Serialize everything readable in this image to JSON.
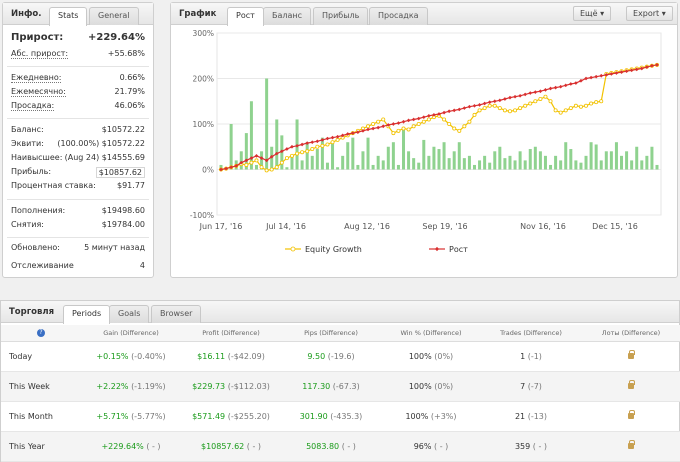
{
  "info": {
    "title": "Инфо.",
    "tabs": [
      "Stats",
      "General"
    ],
    "gain": {
      "label": "Прирост:",
      "value": "+229.64%"
    },
    "abs_gain": {
      "label": "Абс. прирост:",
      "value": "+55.68%"
    },
    "daily": {
      "label": "Ежедневно:",
      "value": "0.66%"
    },
    "monthly": {
      "label": "Ежемесячно:",
      "value": "21.79%"
    },
    "drawdown": {
      "label": "Просадка:",
      "value": "46.06%"
    },
    "balance": {
      "label": "Баланс:",
      "value": "$10572.22"
    },
    "equity": {
      "label": "Эквити:",
      "value": "(100.00%) $10572.22"
    },
    "highest": {
      "label": "Наивысшее:",
      "value": "(Aug 24) $14555.69"
    },
    "profit": {
      "label": "Прибыль:",
      "value": "$10857.62"
    },
    "interest": {
      "label": "Процентная ставка:",
      "value": "$91.77"
    },
    "deposits": {
      "label": "Пополнения:",
      "value": "$19498.60"
    },
    "withdrawals": {
      "label": "Снятия:",
      "value": "$19784.00"
    },
    "updated": {
      "label": "Обновлено:",
      "value": "5 минут назад"
    },
    "tracking": {
      "label": "Отслеживание",
      "value": "4"
    }
  },
  "graph": {
    "title": "График",
    "tabs": [
      "Рост",
      "Баланс",
      "Прибыль",
      "Просадка"
    ],
    "more_label": "Ещё",
    "export_label": "Export",
    "legend_equity": "Equity Growth",
    "legend_growth": "Рост"
  },
  "chart_data": {
    "type": "line",
    "ylim": [
      -100,
      300
    ],
    "yticks": [
      "300%",
      "200%",
      "100%",
      "0%",
      "-100%"
    ],
    "xticks": [
      "Jun 17, '16",
      "Jul 14, '16",
      "Aug 12, '16",
      "Sep 19, '16",
      "Nov 16, '16",
      "Dec 15, '16"
    ],
    "series": [
      {
        "name": "Equity Growth",
        "color": "#f2c200",
        "values": [
          0,
          2,
          5,
          8,
          12,
          10,
          15,
          20,
          5,
          -2,
          0,
          5,
          15,
          25,
          30,
          35,
          38,
          40,
          45,
          50,
          52,
          55,
          60,
          65,
          70,
          75,
          80,
          85,
          90,
          95,
          100,
          105,
          110,
          95,
          80,
          85,
          90,
          88,
          95,
          100,
          105,
          110,
          115,
          118,
          110,
          100,
          90,
          85,
          95,
          105,
          120,
          130,
          135,
          140,
          140,
          135,
          130,
          128,
          130,
          135,
          140,
          145,
          150,
          155,
          160,
          150,
          130,
          125,
          130,
          135,
          140,
          138,
          140,
          145,
          148,
          150,
          210,
          212,
          214,
          216,
          218,
          220,
          222,
          224,
          226,
          228,
          230
        ]
      },
      {
        "name": "Рост",
        "color": "#d93030",
        "values": [
          0,
          2,
          5,
          8,
          15,
          20,
          25,
          30,
          25,
          20,
          28,
          35,
          40,
          45,
          50,
          52,
          55,
          58,
          60,
          62,
          65,
          68,
          70,
          72,
          75,
          78,
          80,
          82,
          85,
          88,
          90,
          92,
          95,
          98,
          100,
          102,
          105,
          108,
          110,
          112,
          115,
          118,
          120,
          122,
          125,
          128,
          130,
          132,
          135,
          138,
          140,
          142,
          145,
          148,
          150,
          152,
          155,
          158,
          160,
          162,
          165,
          168,
          170,
          172,
          175,
          178,
          180,
          182,
          185,
          188,
          190,
          195,
          200,
          202,
          204,
          206,
          208,
          210,
          212,
          214,
          216,
          218,
          220,
          222,
          225,
          228,
          230
        ]
      }
    ],
    "bars": [
      10,
      5,
      100,
      20,
      40,
      80,
      150,
      10,
      40,
      200,
      50,
      110,
      75,
      5,
      30,
      110,
      20,
      60,
      30,
      45,
      70,
      15,
      60,
      5,
      30,
      60,
      70,
      10,
      40,
      70,
      10,
      30,
      20,
      50,
      60,
      10,
      90,
      40,
      25,
      15,
      65,
      30,
      50,
      45,
      60,
      25,
      40,
      60,
      25,
      30,
      10,
      20,
      30,
      15,
      40,
      50,
      25,
      30,
      20,
      40,
      20,
      45,
      50,
      40,
      30,
      10,
      30,
      20,
      60,
      45,
      20,
      15,
      30,
      60,
      55,
      20,
      40,
      40,
      60,
      30,
      40,
      20,
      50,
      20,
      30,
      50,
      10
    ]
  },
  "trading": {
    "title": "Торговля",
    "tabs": [
      "Periods",
      "Goals",
      "Browser"
    ],
    "columns": [
      "Gain (Difference)",
      "Profit (Difference)",
      "Pips (Difference)",
      "Win % (Difference)",
      "Trades (Difference)",
      "Лоты (Difference)"
    ],
    "rows": [
      {
        "label": "Today",
        "gain": "+0.15%",
        "gain_diff": "(-0.40%)",
        "profit": "$16.11",
        "profit_diff": "(-$42.09)",
        "pips": "9.50",
        "pips_diff": "(-19.6)",
        "win": "100%",
        "win_diff": "(0%)",
        "trades": "1",
        "trades_diff": "(-1)"
      },
      {
        "label": "This Week",
        "gain": "+2.22%",
        "gain_diff": "(-1.19%)",
        "profit": "$229.73",
        "profit_diff": "(-$112.03)",
        "pips": "117.30",
        "pips_diff": "(-67.3)",
        "win": "100%",
        "win_diff": "(0%)",
        "trades": "7",
        "trades_diff": "(-7)"
      },
      {
        "label": "This Month",
        "gain": "+5.71%",
        "gain_diff": "(-5.77%)",
        "profit": "$571.49",
        "profit_diff": "(-$255.20)",
        "pips": "301.90",
        "pips_diff": "(-435.3)",
        "win": "100%",
        "win_diff": "(+3%)",
        "trades": "21",
        "trades_diff": "(-13)"
      },
      {
        "label": "This Year",
        "gain": "+229.64%",
        "gain_diff": "( - )",
        "profit": "$10857.62",
        "profit_diff": "( - )",
        "pips": "5083.80",
        "pips_diff": "( - )",
        "win": "96%",
        "win_diff": "( - )",
        "trades": "359",
        "trades_diff": "( - )"
      }
    ]
  }
}
